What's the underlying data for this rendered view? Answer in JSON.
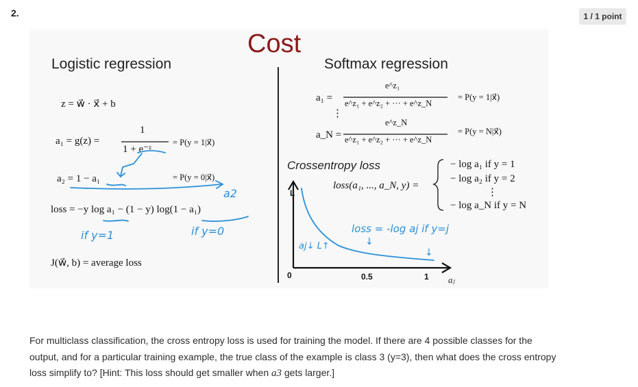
{
  "question": {
    "number": "2.",
    "points": "1 / 1 point",
    "text_before": "For multiclass classification, the cross entropy loss is used for training the model. If there are 4 possible classes for the output, and for a particular training example, the true class of the example is class 3 (y=3), then what does the cross entropy loss simplify to? [Hint: This loss should get smaller when ",
    "text_var": "a3",
    "text_after": " gets larger.]"
  },
  "figure": {
    "title": "Cost",
    "left": {
      "heading": "Logistic regression",
      "z_eq": "z = w⃗ · x⃗ + b",
      "a1_lhs": "a₁ = g(z) =",
      "a1_num": "1",
      "a1_den": "1 + e⁻ᶻ",
      "a1_rhs": "= P(y = 1|x⃗)",
      "a2_eq": "a₂ = 1 − a₁",
      "a2_rhs": "= P(y = 0|x⃗)",
      "loss_eq": "loss = −y log a₁ − (1 − y) log(1 − a₁)",
      "j_eq": "J(w⃗, b) = average loss",
      "note_a2": "a2",
      "note_if1": "if y=1",
      "note_if0": "if y=0"
    },
    "right": {
      "heading": "Softmax regression",
      "a1_lhs": "a₁ =",
      "a1_num": "e^z₁",
      "a1_den": "e^z₁ + e^z₂ + ··· + e^z_N",
      "a1_rhs": "= P(y = 1|x⃗)",
      "vdots": "⋮",
      "aN_lhs": "a_N =",
      "aN_num": "e^z_N",
      "aN_den": "e^z₁ + e^z₂ + ··· + e^z_N",
      "aN_rhs": "= P(y = N|x⃗)",
      "ce_label": "Crossentropy loss",
      "loss_lhs": "loss(a₁, ..., a_N, y) =",
      "case1": "− log a₁   if y = 1",
      "case2": "− log a₂   if y = 2",
      "case_dots": "⋮",
      "caseN": "− log a_N   if y = N",
      "plot_ylabel": "L",
      "plot_xlabel": "aⱼ",
      "tick_0": "0",
      "tick_05": "0.5",
      "tick_1": "1",
      "note_loss": "loss = -log aj  if y=j",
      "note_aj": "aj↓ L↑",
      "note_down1": "↓",
      "note_down2": "↓"
    }
  }
}
